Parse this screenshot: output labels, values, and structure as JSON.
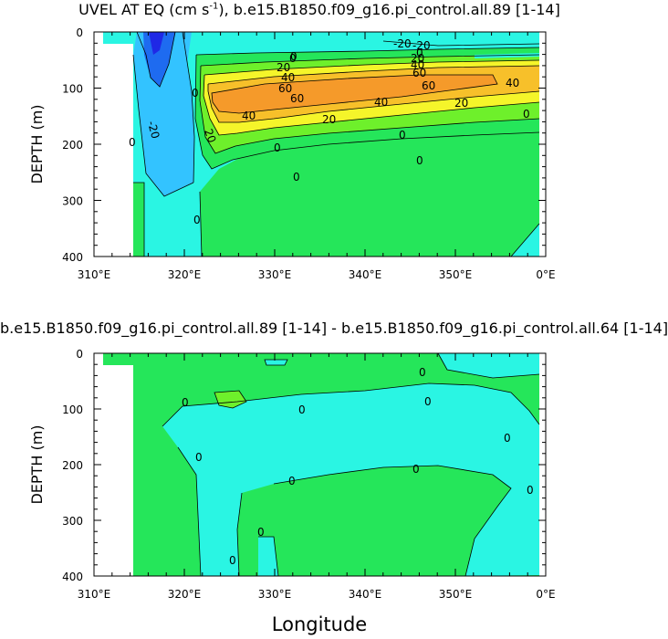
{
  "chart_data": [
    {
      "type": "contour",
      "title_prefix": "UVEL AT EQ (cm s",
      "title_exp": "-1",
      "title_suffix": "), b.e15.B1850.f09_g16.pi_control.all.89 [1-14]",
      "ylabel": "DEPTH (m)",
      "xlabel": "",
      "xlim": [
        310,
        360
      ],
      "ylim": [
        400,
        0
      ],
      "xticks": [
        "310°E",
        "320°E",
        "330°E",
        "340°E",
        "350°E",
        "0°E"
      ],
      "yticks": [
        "0",
        "100",
        "200",
        "300",
        "400"
      ],
      "contour_labels": [
        "-20",
        "0",
        "0",
        "0",
        "-20",
        "20",
        "40",
        "60",
        "60",
        "40",
        "20",
        "40",
        "20",
        "0",
        "0",
        "0",
        "0",
        "0",
        "-20",
        "20",
        "40",
        "60",
        "0",
        "60",
        "40",
        "20",
        "0",
        "0"
      ],
      "colors": {
        "blue": "#1f28e6",
        "midblue": "#1e6bf0",
        "lightblue": "#33c3ff",
        "cyan": "#2af5e3",
        "green": "#25e65a",
        "lightgreen": "#6ef02b",
        "yellow": "#f5f52a",
        "lightorange": "#f7c02a",
        "orange": "#f59a2a"
      }
    },
    {
      "type": "contour",
      "title": "b.e15.B1850.f09_g16.pi_control.all.89 [1-14] - b.e15.B1850.f09_g16.pi_control.all.64 [1-14]",
      "ylabel": "DEPTH (m)",
      "xlabel": "Longitude",
      "xlim": [
        310,
        360
      ],
      "ylim": [
        400,
        0
      ],
      "xticks": [
        "310°E",
        "320°E",
        "330°E",
        "340°E",
        "350°E",
        "0°E"
      ],
      "yticks": [
        "0",
        "100",
        "200",
        "300",
        "400"
      ],
      "contour_labels": [
        "0",
        "0",
        "0",
        "0",
        "0",
        "0",
        "0",
        "0",
        "0",
        "0",
        "0"
      ],
      "colors": {
        "cyan": "#2af5e3",
        "green": "#25e65a",
        "lightgreen": "#6ef02b"
      }
    }
  ]
}
